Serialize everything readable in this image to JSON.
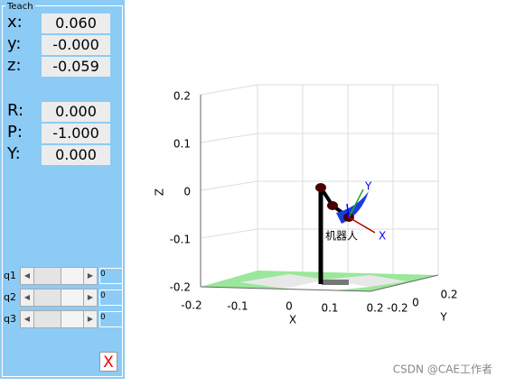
{
  "panel": {
    "title": "Teach",
    "position": [
      {
        "label": "x:",
        "value": "0.060"
      },
      {
        "label": "y:",
        "value": "-0.000"
      },
      {
        "label": "z:",
        "value": "-0.059"
      }
    ],
    "orientation": [
      {
        "label": "R:",
        "value": "0.000"
      },
      {
        "label": "P:",
        "value": "-1.000"
      },
      {
        "label": "Y:",
        "value": "0.000"
      }
    ],
    "joints": [
      {
        "label": "q1",
        "value": "0"
      },
      {
        "label": "q2",
        "value": "0"
      },
      {
        "label": "q3",
        "value": "0"
      }
    ],
    "close": "X"
  },
  "plot": {
    "z_label": "Z",
    "x_label": "X",
    "y_label": "Y",
    "z_ticks": [
      "0.2",
      "0.1",
      "0",
      "-0.1",
      "-0.2"
    ],
    "x_ticks": [
      "-0.2",
      "-0.1",
      "0",
      "0.1",
      "0.2"
    ],
    "y_ticks": [
      "-0.2",
      "0",
      "0.2"
    ],
    "robot_name": "机器人",
    "frame_x": "X",
    "frame_y": "Y"
  },
  "watermark": "CSDN @CAE工作者"
}
